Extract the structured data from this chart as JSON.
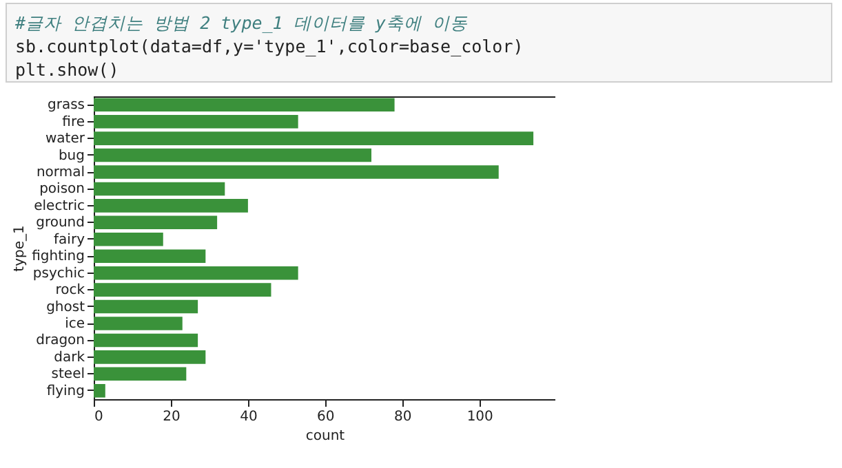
{
  "chart_data": {
    "type": "bar",
    "orientation": "horizontal",
    "xlabel": "count",
    "ylabel": "type_1",
    "annotations": [
      "#글자 안겹치는 방법 2 type_1 데이터를 y축에 이동",
      "sb.countplot(data=df,y='type_1',color=base_color)",
      "plt.show()"
    ],
    "categories": [
      "grass",
      "fire",
      "water",
      "bug",
      "normal",
      "poison",
      "electric",
      "ground",
      "fairy",
      "fighting",
      "psychic",
      "rock",
      "ghost",
      "ice",
      "dragon",
      "dark",
      "steel",
      "flying"
    ],
    "values": [
      78,
      53,
      114,
      72,
      105,
      34,
      40,
      32,
      18,
      29,
      53,
      46,
      27,
      23,
      27,
      29,
      24,
      3
    ],
    "color": "#3a923a",
    "xlim": [
      0,
      119.7
    ],
    "xticks": [
      0,
      20,
      40,
      60,
      80,
      100
    ],
    "grid": false
  }
}
